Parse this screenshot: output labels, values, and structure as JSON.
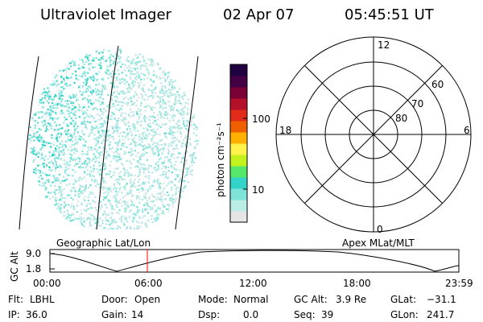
{
  "header": {
    "instrument": "Ultraviolet Imager",
    "date": "02 Apr 07",
    "time": "05:45:51 UT"
  },
  "colorbar": {
    "unit_label": "photon cm⁻²s⁻¹",
    "ticks": [
      "100",
      "10"
    ],
    "scale": "log",
    "colors": [
      "#e5e5e5",
      "#b9ede6",
      "#7fe3da",
      "#34d3c9",
      "#55e86a",
      "#c4f21d",
      "#fff24a",
      "#ffb000",
      "#f06000",
      "#e02a1a",
      "#b5102a",
      "#7a0035",
      "#430045",
      "#200040"
    ]
  },
  "polar": {
    "mlt_labels": {
      "top": "12",
      "left": "18",
      "right": "6",
      "bottom": "0"
    },
    "lat_labels": [
      "60",
      "70",
      "80"
    ]
  },
  "timeline": {
    "left_title": "Geographic Lat/Lon",
    "right_title": "Apex MLat/MLT",
    "y_label": "GC Alt",
    "y_ticks": [
      "9.0",
      "1.8"
    ],
    "x_ticks": [
      "00:00",
      "06:00",
      "12:00",
      "18:00",
      "23:59"
    ],
    "current_time": "05:45:51",
    "marker_color": "#ff0000"
  },
  "status": {
    "filter_label": "Flt:",
    "filter_value": "LBHL",
    "door_label": "Door:",
    "door_value": "Open",
    "mode_label": "Mode:",
    "mode_value": "Normal",
    "gcalt_label": "GC Alt:",
    "gcalt_value": "3.9 Re",
    "glat_label": "GLat:",
    "glat_value": "−31.1",
    "ip_label": "IP:",
    "ip_value": "36.0",
    "gain_label": "Gain:",
    "gain_value": "14",
    "dsp_label": "Dsp:",
    "dsp_value": "0.0",
    "seq_label": "Seq:",
    "seq_value": "39",
    "glon_label": "GLon:",
    "glon_value": "241.7"
  }
}
